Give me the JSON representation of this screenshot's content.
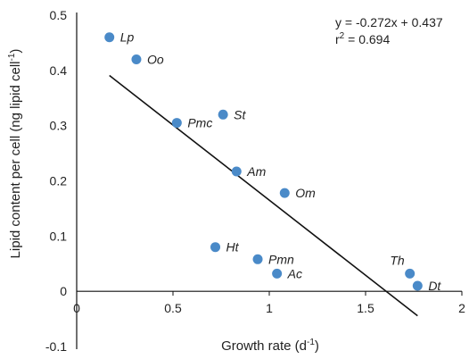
{
  "chart_data": {
    "type": "scatter",
    "xlabel": "Growth rate (d",
    "xlabel_sup": "-1",
    "xlabel_close": ")",
    "ylabel": "Lipid content per cell (ng lipid cell",
    "ylabel_sup": "-1",
    "ylabel_close": ")",
    "xlim": [
      0,
      2
    ],
    "ylim": [
      -0.1,
      0.5
    ],
    "x_ticks": [
      "0",
      "0.5",
      "1",
      "1.5",
      "2"
    ],
    "y_ticks": [
      "-0.1",
      "0",
      "0.1",
      "0.2",
      "0.3",
      "0.4",
      "0.5"
    ],
    "marker_color": "#4a8ac8",
    "points": [
      {
        "label": "Lp",
        "x": 0.17,
        "y": 0.46
      },
      {
        "label": "Oo",
        "x": 0.31,
        "y": 0.42
      },
      {
        "label": "Pmc",
        "x": 0.52,
        "y": 0.305
      },
      {
        "label": "St",
        "x": 0.76,
        "y": 0.32
      },
      {
        "label": "Am",
        "x": 0.83,
        "y": 0.217
      },
      {
        "label": "Om",
        "x": 1.08,
        "y": 0.178
      },
      {
        "label": "Ht",
        "x": 0.72,
        "y": 0.08
      },
      {
        "label": "Pmn",
        "x": 0.94,
        "y": 0.058
      },
      {
        "label": "Ac",
        "x": 1.04,
        "y": 0.032
      },
      {
        "label": "Th",
        "x": 1.73,
        "y": 0.032
      },
      {
        "label": "Dt",
        "x": 1.77,
        "y": 0.01
      }
    ],
    "trendline": {
      "slope": -0.272,
      "intercept": 0.437,
      "x_start": 0.17,
      "x_end": 1.77
    },
    "annotations": {
      "equation": "y = -0.272x + 0.437",
      "r2_prefix": "r",
      "r2_sup": "2",
      "r2_value": " = 0.694"
    }
  }
}
